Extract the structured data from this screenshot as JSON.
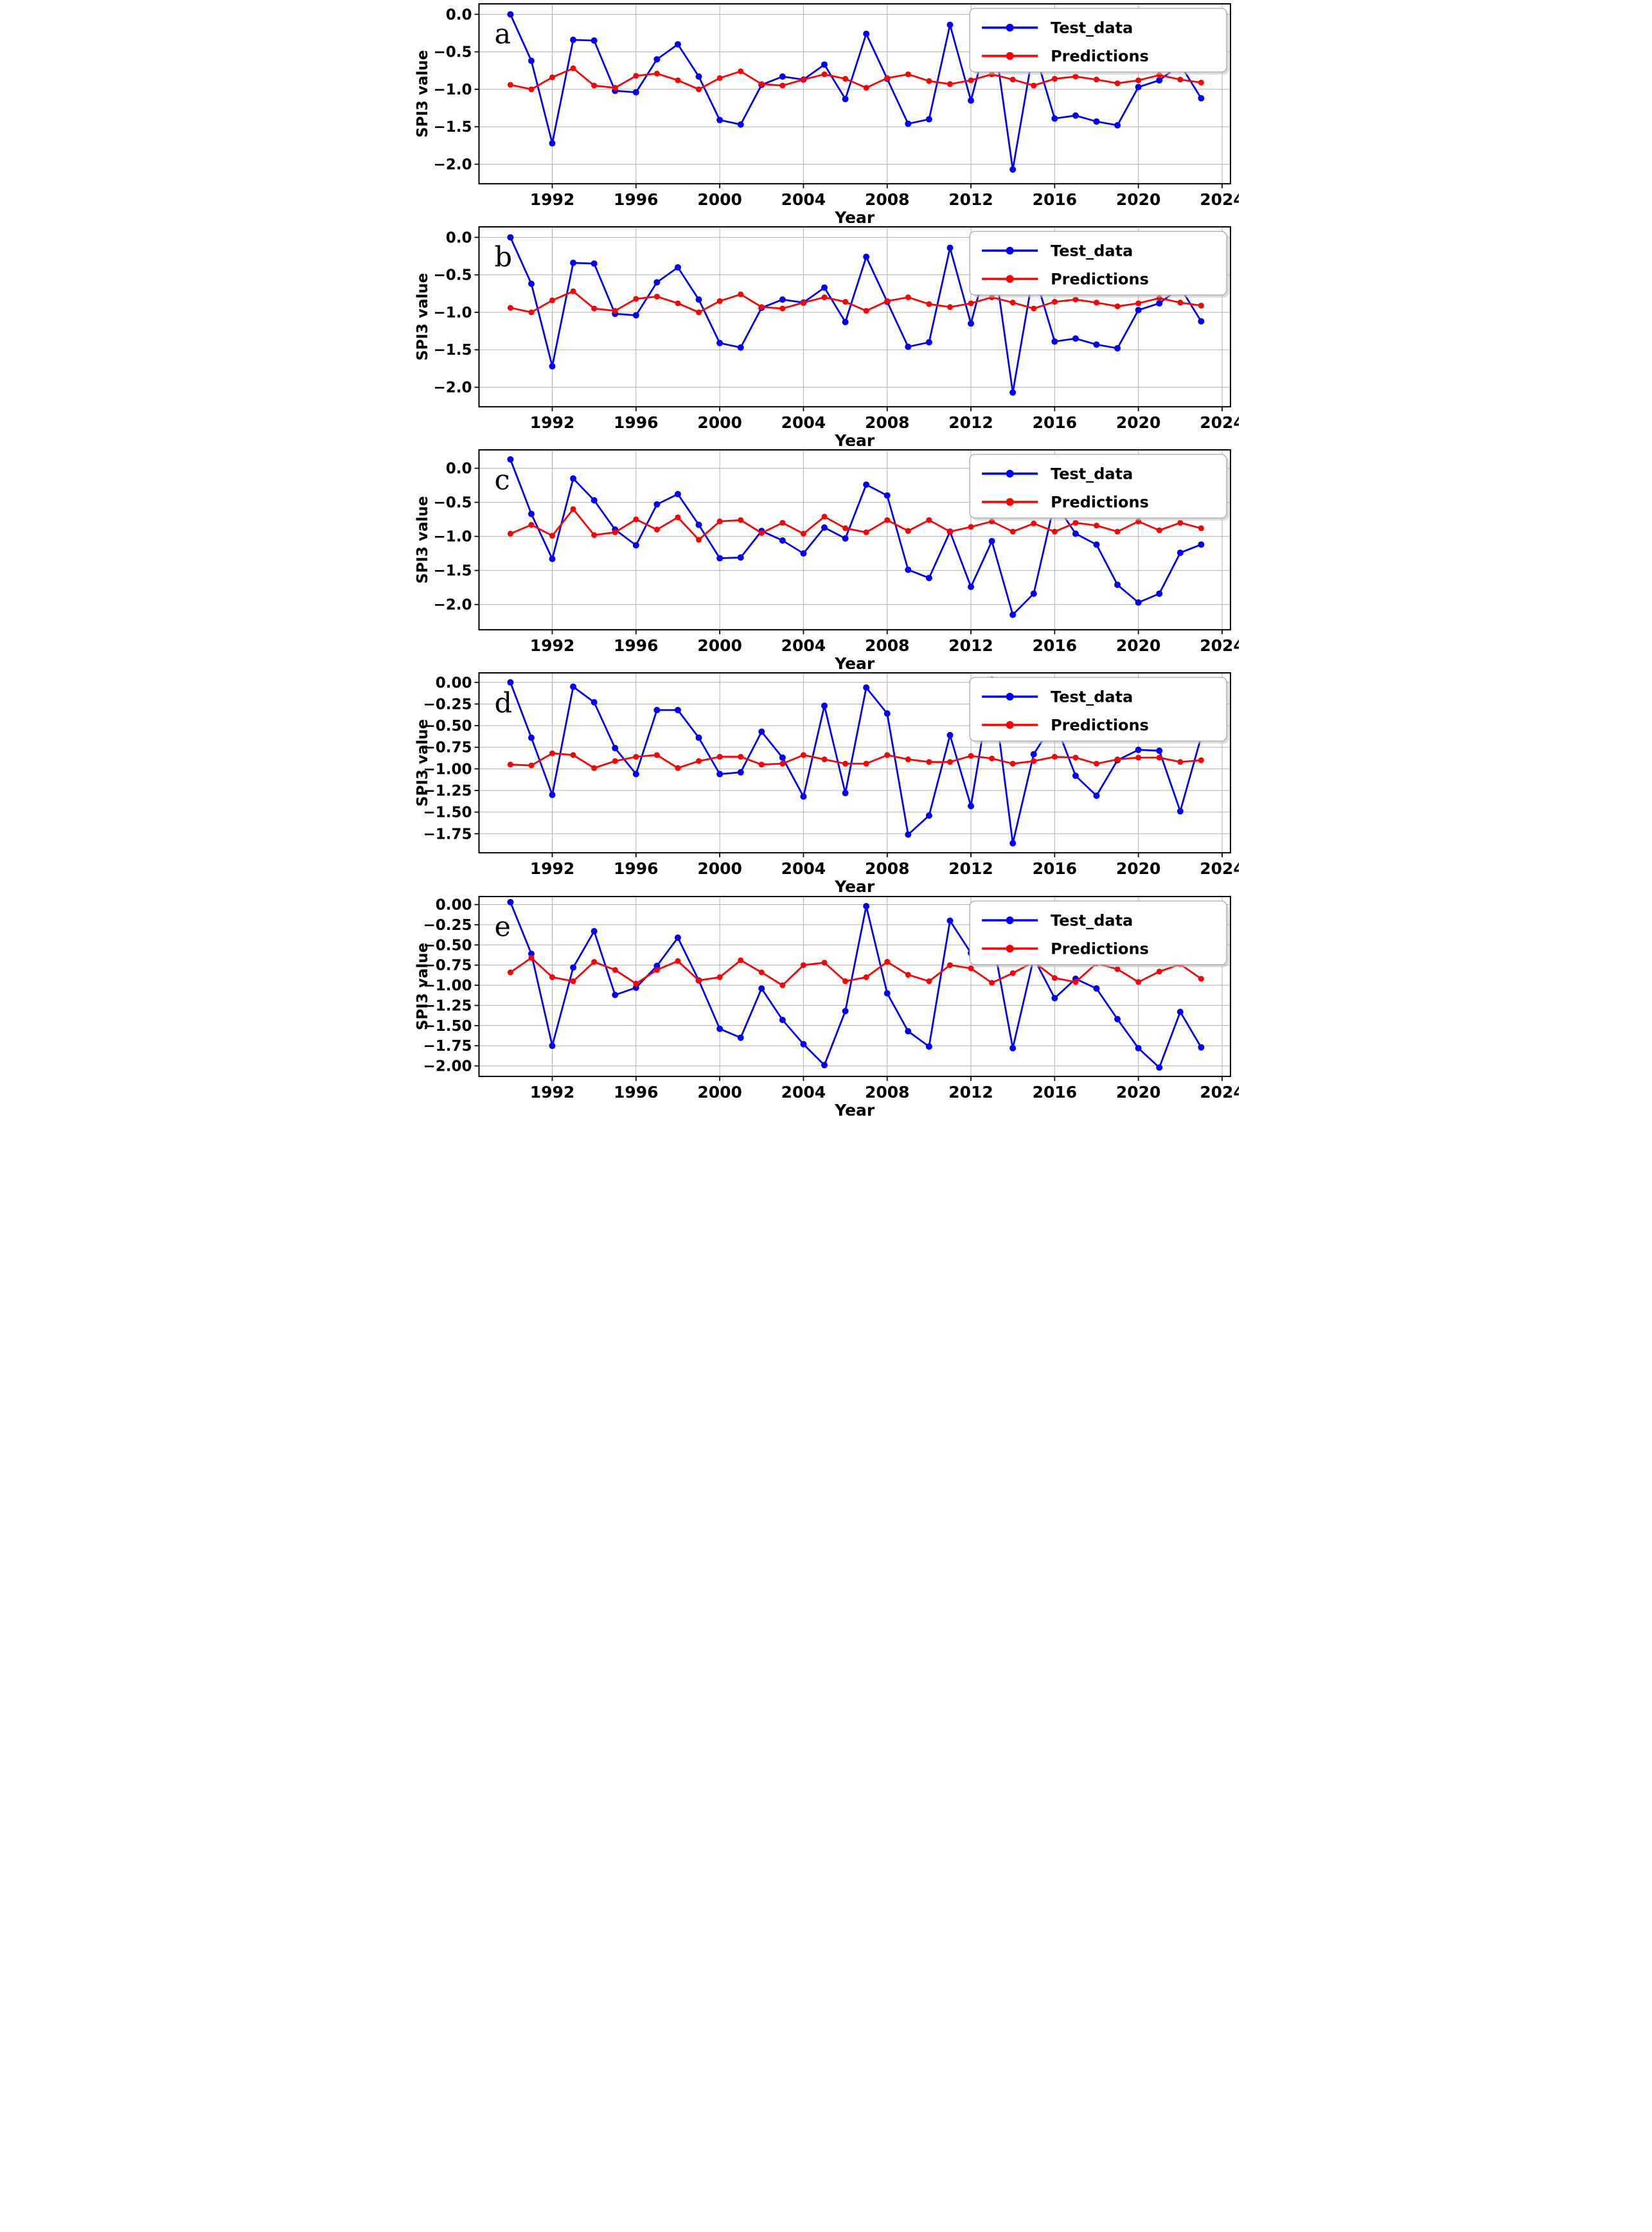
{
  "figure": {
    "background": "#ffffff",
    "grid_color": "#b0b0b0",
    "axis_color": "#000000",
    "test_data_color": "#0000ff",
    "predictions_color": "#ff0000"
  },
  "chart_data": [
    {
      "type": "line",
      "panel_label": "a",
      "xlabel": "Year",
      "ylabel": "SPI3 value",
      "grid": true,
      "legend": {
        "location": "upper right",
        "entries": [
          "Test_data",
          "Predictions"
        ]
      },
      "x": [
        1990,
        1991,
        1992,
        1993,
        1994,
        1995,
        1996,
        1997,
        1998,
        1999,
        2000,
        2001,
        2002,
        2003,
        2004,
        2005,
        2006,
        2007,
        2008,
        2009,
        2010,
        2011,
        2012,
        2013,
        2014,
        2015,
        2016,
        2017,
        2018,
        2019,
        2020,
        2021,
        2022,
        2023
      ],
      "xlim": [
        1988.5,
        2024.4
      ],
      "ylim": [
        -2.26,
        0.14
      ],
      "xticks": [
        1992,
        1996,
        2000,
        2004,
        2008,
        2012,
        2016,
        2020,
        2024
      ],
      "xtick_labels": [
        "1992",
        "1996",
        "2000",
        "2004",
        "2008",
        "2012",
        "2016",
        "2020",
        "2024"
      ],
      "yticks": [
        0.0,
        -0.5,
        -1.0,
        -1.5,
        -2.0
      ],
      "ytick_labels": [
        "0.0",
        "−0.5",
        "−1.0",
        "−1.5",
        "−2.0"
      ],
      "series": [
        {
          "name": "Test_data",
          "color": "#0000ff",
          "marker": "circle",
          "values": [
            0.0,
            -0.62,
            -1.72,
            -0.34,
            -0.35,
            -1.02,
            -1.04,
            -0.6,
            -0.4,
            -0.83,
            -1.41,
            -1.47,
            -0.94,
            -0.83,
            -0.87,
            -0.67,
            -1.13,
            -0.26,
            -0.86,
            -1.46,
            -1.4,
            -0.14,
            -1.15,
            -0.09,
            -2.07,
            -0.45,
            -1.39,
            -1.35,
            -1.43,
            -1.48,
            -0.97,
            -0.88,
            -0.67,
            -1.12
          ]
        },
        {
          "name": "Predictions",
          "color": "#ff0000",
          "marker": "circle",
          "values": [
            -0.94,
            -1.0,
            -0.84,
            -0.72,
            -0.95,
            -0.98,
            -0.82,
            -0.79,
            -0.88,
            -1.0,
            -0.85,
            -0.76,
            -0.93,
            -0.95,
            -0.87,
            -0.8,
            -0.86,
            -0.98,
            -0.85,
            -0.8,
            -0.89,
            -0.93,
            -0.88,
            -0.8,
            -0.87,
            -0.95,
            -0.86,
            -0.83,
            -0.87,
            -0.92,
            -0.88,
            -0.81,
            -0.87,
            -0.91
          ]
        }
      ]
    },
    {
      "type": "line",
      "panel_label": "b",
      "xlabel": "Year",
      "ylabel": "SPI3 value",
      "grid": true,
      "legend": {
        "location": "upper right",
        "entries": [
          "Test_data",
          "Predictions"
        ]
      },
      "x": [
        1990,
        1991,
        1992,
        1993,
        1994,
        1995,
        1996,
        1997,
        1998,
        1999,
        2000,
        2001,
        2002,
        2003,
        2004,
        2005,
        2006,
        2007,
        2008,
        2009,
        2010,
        2011,
        2012,
        2013,
        2014,
        2015,
        2016,
        2017,
        2018,
        2019,
        2020,
        2021,
        2022,
        2023
      ],
      "xlim": [
        1988.5,
        2024.4
      ],
      "ylim": [
        -2.26,
        0.14
      ],
      "xticks": [
        1992,
        1996,
        2000,
        2004,
        2008,
        2012,
        2016,
        2020,
        2024
      ],
      "xtick_labels": [
        "1992",
        "1996",
        "2000",
        "2004",
        "2008",
        "2012",
        "2016",
        "2020",
        "2024"
      ],
      "yticks": [
        0.0,
        -0.5,
        -1.0,
        -1.5,
        -2.0
      ],
      "ytick_labels": [
        "0.0",
        "−0.5",
        "−1.0",
        "−1.5",
        "−2.0"
      ],
      "series": [
        {
          "name": "Test_data",
          "color": "#0000ff",
          "marker": "circle",
          "values": [
            0.0,
            -0.62,
            -1.72,
            -0.34,
            -0.35,
            -1.02,
            -1.04,
            -0.6,
            -0.4,
            -0.83,
            -1.41,
            -1.47,
            -0.94,
            -0.83,
            -0.87,
            -0.67,
            -1.13,
            -0.26,
            -0.86,
            -1.46,
            -1.4,
            -0.14,
            -1.15,
            -0.09,
            -2.07,
            -0.45,
            -1.39,
            -1.35,
            -1.43,
            -1.48,
            -0.97,
            -0.88,
            -0.67,
            -1.12
          ]
        },
        {
          "name": "Predictions",
          "color": "#ff0000",
          "marker": "circle",
          "values": [
            -0.94,
            -1.0,
            -0.84,
            -0.72,
            -0.95,
            -0.98,
            -0.82,
            -0.79,
            -0.88,
            -1.0,
            -0.85,
            -0.76,
            -0.93,
            -0.95,
            -0.87,
            -0.8,
            -0.86,
            -0.98,
            -0.85,
            -0.8,
            -0.89,
            -0.93,
            -0.88,
            -0.8,
            -0.87,
            -0.95,
            -0.86,
            -0.83,
            -0.87,
            -0.92,
            -0.88,
            -0.81,
            -0.87,
            -0.91
          ]
        }
      ]
    },
    {
      "type": "line",
      "panel_label": "c",
      "xlabel": "Year",
      "ylabel": "SPI3 value",
      "grid": true,
      "legend": {
        "location": "upper right",
        "entries": [
          "Test_data",
          "Predictions"
        ]
      },
      "x": [
        1990,
        1991,
        1992,
        1993,
        1994,
        1995,
        1996,
        1997,
        1998,
        1999,
        2000,
        2001,
        2002,
        2003,
        2004,
        2005,
        2006,
        2007,
        2008,
        2009,
        2010,
        2011,
        2012,
        2013,
        2014,
        2015,
        2016,
        2017,
        2018,
        2019,
        2020,
        2021,
        2022,
        2023
      ],
      "xlim": [
        1988.5,
        2024.4
      ],
      "ylim": [
        -2.37,
        0.27
      ],
      "xticks": [
        1992,
        1996,
        2000,
        2004,
        2008,
        2012,
        2016,
        2020,
        2024
      ],
      "xtick_labels": [
        "1992",
        "1996",
        "2000",
        "2004",
        "2008",
        "2012",
        "2016",
        "2020",
        "2024"
      ],
      "yticks": [
        0.0,
        -0.5,
        -1.0,
        -1.5,
        -2.0
      ],
      "ytick_labels": [
        "0.0",
        "−0.5",
        "−1.0",
        "−1.5",
        "−2.0"
      ],
      "series": [
        {
          "name": "Test_data",
          "color": "#0000ff",
          "marker": "circle",
          "values": [
            0.13,
            -0.67,
            -1.33,
            -0.15,
            -0.47,
            -0.9,
            -1.13,
            -0.53,
            -0.38,
            -0.83,
            -1.32,
            -1.31,
            -0.92,
            -1.06,
            -1.25,
            -0.87,
            -1.03,
            -0.24,
            -0.4,
            -1.49,
            -1.61,
            -0.93,
            -1.74,
            -1.07,
            -2.15,
            -1.84,
            -0.5,
            -0.96,
            -1.12,
            -1.71,
            -1.97,
            -1.84,
            -1.24,
            -1.12
          ]
        },
        {
          "name": "Predictions",
          "color": "#ff0000",
          "marker": "circle",
          "values": [
            -0.96,
            -0.83,
            -0.99,
            -0.6,
            -0.98,
            -0.94,
            -0.75,
            -0.9,
            -0.72,
            -1.05,
            -0.78,
            -0.76,
            -0.95,
            -0.8,
            -0.96,
            -0.71,
            -0.88,
            -0.94,
            -0.76,
            -0.92,
            -0.76,
            -0.93,
            -0.86,
            -0.78,
            -0.93,
            -0.81,
            -0.93,
            -0.8,
            -0.84,
            -0.93,
            -0.78,
            -0.91,
            -0.8,
            -0.88
          ]
        }
      ]
    },
    {
      "type": "line",
      "panel_label": "d",
      "xlabel": "Year",
      "ylabel": "SPI3 value",
      "grid": true,
      "legend": {
        "location": "upper right",
        "entries": [
          "Test_data",
          "Predictions"
        ]
      },
      "x": [
        1990,
        1991,
        1992,
        1993,
        1994,
        1995,
        1996,
        1997,
        1998,
        1999,
        2000,
        2001,
        2002,
        2003,
        2004,
        2005,
        2006,
        2007,
        2008,
        2009,
        2010,
        2011,
        2012,
        2013,
        2014,
        2015,
        2016,
        2017,
        2018,
        2019,
        2020,
        2021,
        2022,
        2023
      ],
      "xlim": [
        1988.5,
        2024.4
      ],
      "ylim": [
        -1.97,
        0.11
      ],
      "xticks": [
        1992,
        1996,
        2000,
        2004,
        2008,
        2012,
        2016,
        2020,
        2024
      ],
      "xtick_labels": [
        "1992",
        "1996",
        "2000",
        "2004",
        "2008",
        "2012",
        "2016",
        "2020",
        "2024"
      ],
      "yticks": [
        0.0,
        -0.25,
        -0.5,
        -0.75,
        -1.0,
        -1.25,
        -1.5,
        -1.75
      ],
      "ytick_labels": [
        "0.00",
        "−0.25",
        "−0.50",
        "−0.75",
        "−1.00",
        "−1.25",
        "−1.50",
        "−1.75"
      ],
      "series": [
        {
          "name": "Test_data",
          "color": "#0000ff",
          "marker": "circle",
          "values": [
            0.0,
            -0.64,
            -1.3,
            -0.05,
            -0.23,
            -0.76,
            -1.06,
            -0.32,
            -0.32,
            -0.64,
            -1.06,
            -1.04,
            -0.57,
            -0.87,
            -1.32,
            -0.27,
            -1.28,
            -0.06,
            -0.36,
            -1.76,
            -1.54,
            -0.61,
            -1.43,
            0.03,
            -1.86,
            -0.83,
            -0.45,
            -1.08,
            -1.31,
            -0.9,
            -0.78,
            -0.79,
            -1.49,
            -0.63
          ]
        },
        {
          "name": "Predictions",
          "color": "#ff0000",
          "marker": "circle",
          "values": [
            -0.95,
            -0.96,
            -0.82,
            -0.84,
            -0.99,
            -0.91,
            -0.86,
            -0.84,
            -0.99,
            -0.91,
            -0.86,
            -0.86,
            -0.95,
            -0.94,
            -0.84,
            -0.89,
            -0.94,
            -0.94,
            -0.84,
            -0.89,
            -0.92,
            -0.92,
            -0.85,
            -0.88,
            -0.94,
            -0.91,
            -0.86,
            -0.87,
            -0.94,
            -0.89,
            -0.87,
            -0.87,
            -0.92,
            -0.9
          ]
        }
      ]
    },
    {
      "type": "line",
      "panel_label": "e",
      "xlabel": "Year",
      "ylabel": "SPI3 value",
      "grid": true,
      "legend": {
        "location": "upper right",
        "entries": [
          "Test_data",
          "Predictions"
        ]
      },
      "x": [
        1990,
        1991,
        1992,
        1993,
        1994,
        1995,
        1996,
        1997,
        1998,
        1999,
        2000,
        2001,
        2002,
        2003,
        2004,
        2005,
        2006,
        2007,
        2008,
        2009,
        2010,
        2011,
        2012,
        2013,
        2014,
        2015,
        2016,
        2017,
        2018,
        2019,
        2020,
        2021,
        2022,
        2023
      ],
      "xlim": [
        1988.5,
        2024.4
      ],
      "ylim": [
        -2.13,
        0.1
      ],
      "xticks": [
        1992,
        1996,
        2000,
        2004,
        2008,
        2012,
        2016,
        2020,
        2024
      ],
      "xtick_labels": [
        "1992",
        "1996",
        "2000",
        "2004",
        "2008",
        "2012",
        "2016",
        "2020",
        "2024"
      ],
      "yticks": [
        0.0,
        -0.25,
        -0.5,
        -0.75,
        -1.0,
        -1.25,
        -1.5,
        -1.75,
        -2.0
      ],
      "ytick_labels": [
        "0.00",
        "−0.25",
        "−0.50",
        "−0.75",
        "−1.00",
        "−1.25",
        "−1.50",
        "−1.75",
        "−2.00"
      ],
      "series": [
        {
          "name": "Test_data",
          "color": "#0000ff",
          "marker": "circle",
          "values": [
            0.03,
            -0.61,
            -1.75,
            -0.78,
            -0.33,
            -1.12,
            -1.03,
            -0.76,
            -0.41,
            -0.94,
            -1.54,
            -1.65,
            -1.04,
            -1.43,
            -1.73,
            -1.99,
            -1.32,
            -0.02,
            -1.1,
            -1.57,
            -1.76,
            -0.2,
            -0.6,
            -0.37,
            -1.78,
            -0.66,
            -1.16,
            -0.92,
            -1.04,
            -1.42,
            -1.78,
            -2.02,
            -1.33,
            -1.77
          ]
        },
        {
          "name": "Predictions",
          "color": "#ff0000",
          "marker": "circle",
          "values": [
            -0.84,
            -0.66,
            -0.9,
            -0.95,
            -0.71,
            -0.81,
            -0.98,
            -0.81,
            -0.7,
            -0.94,
            -0.9,
            -0.69,
            -0.84,
            -1.0,
            -0.75,
            -0.72,
            -0.95,
            -0.9,
            -0.71,
            -0.87,
            -0.95,
            -0.75,
            -0.79,
            -0.97,
            -0.85,
            -0.71,
            -0.91,
            -0.96,
            -0.73,
            -0.8,
            -0.96,
            -0.83,
            -0.74,
            -0.92
          ]
        }
      ]
    }
  ]
}
